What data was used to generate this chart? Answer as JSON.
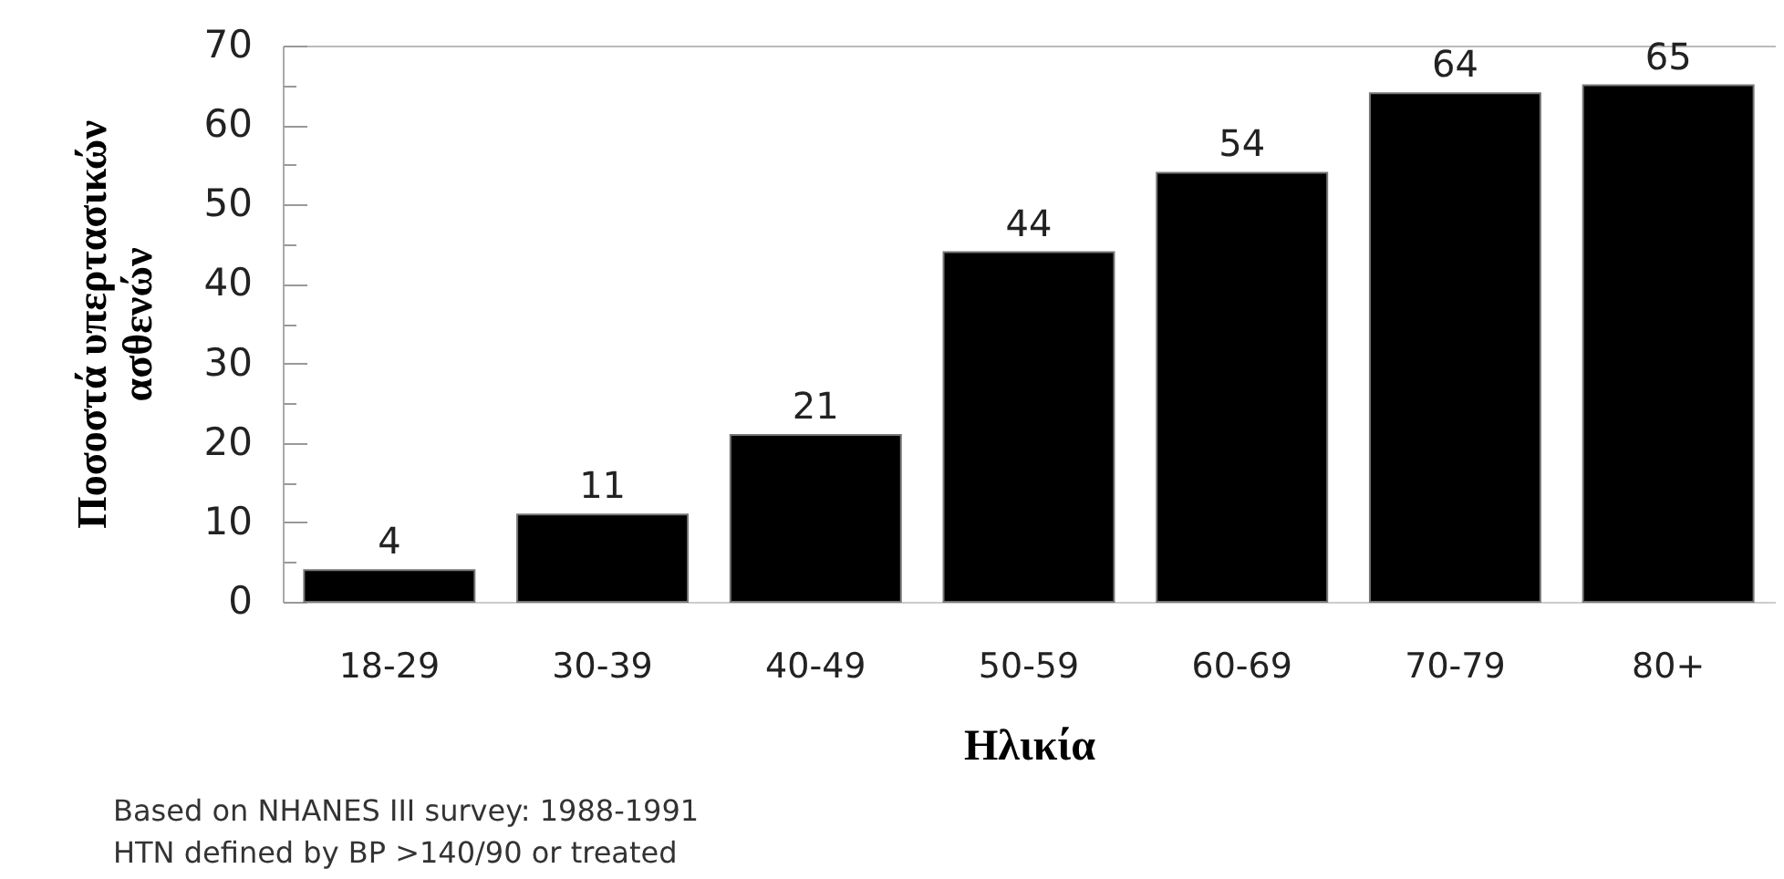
{
  "chart_data": {
    "type": "bar",
    "xlabel": "Ηλικία",
    "ylabel": "Ποσοστά υπερτασικών\nασθενών",
    "categories": [
      "18-29",
      "30-39",
      "40-49",
      "50-59",
      "60-69",
      "70-79",
      "80+"
    ],
    "values": [
      4,
      11,
      21,
      44,
      54,
      64,
      65
    ],
    "color": "#000000",
    "data_labels": true,
    "ylim": [
      0,
      70
    ],
    "yticks": [
      0,
      {
        "value": 5,
        "label": null
      },
      10,
      {
        "value": 15,
        "label": null
      },
      20,
      {
        "value": 25,
        "label": null
      },
      30,
      {
        "value": 35,
        "label": null
      },
      40,
      {
        "value": 45,
        "label": null
      },
      50,
      {
        "value": 55,
        "label": null
      },
      60,
      {
        "value": 65,
        "label": null
      },
      70
    ],
    "annotations": [
      "Based on NHANES III survey: 1988-1991",
      "HTN defined by BP >140/90 or treated"
    ]
  }
}
